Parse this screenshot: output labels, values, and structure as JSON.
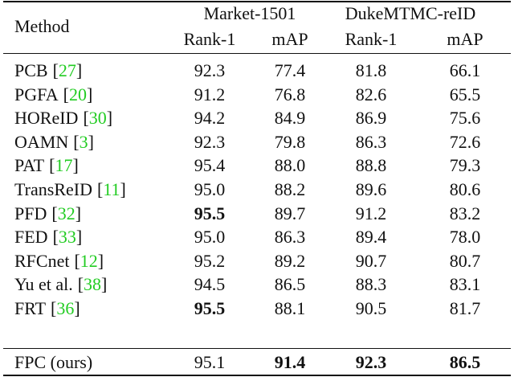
{
  "table": {
    "header": {
      "method": "Method",
      "groups": [
        "Market-1501",
        "DukeMTMC-reID"
      ],
      "metrics": [
        "Rank-1",
        "mAP",
        "Rank-1",
        "mAP"
      ]
    },
    "rows": [
      {
        "method": "PCB",
        "ref": "[27]",
        "values": [
          "92.3",
          "77.4",
          "81.8",
          "66.1"
        ],
        "bold": []
      },
      {
        "method": "PGFA",
        "ref": "[20]",
        "values": [
          "91.2",
          "76.8",
          "82.6",
          "65.5"
        ],
        "bold": []
      },
      {
        "method": "HOReID",
        "ref": "[30]",
        "values": [
          "94.2",
          "84.9",
          "86.9",
          "75.6"
        ],
        "bold": []
      },
      {
        "method": "OAMN",
        "ref": "[3]",
        "values": [
          "92.3",
          "79.8",
          "86.3",
          "72.6"
        ],
        "bold": []
      },
      {
        "method": "PAT",
        "ref": "[17]",
        "values": [
          "95.4",
          "88.0",
          "88.8",
          "79.3"
        ],
        "bold": []
      },
      {
        "method": "TransReID",
        "ref": "[11]",
        "values": [
          "95.0",
          "88.2",
          "89.6",
          "80.6"
        ],
        "bold": []
      },
      {
        "method": "PFD",
        "ref": "[32]",
        "values": [
          "95.5",
          "89.7",
          "91.2",
          "83.2"
        ],
        "bold": [
          0
        ]
      },
      {
        "method": "FED",
        "ref": "[33]",
        "values": [
          "95.0",
          "86.3",
          "89.4",
          "78.0"
        ],
        "bold": []
      },
      {
        "method": "RFCnet",
        "ref": "[12]",
        "values": [
          "95.2",
          "89.2",
          "90.7",
          "80.7"
        ],
        "bold": []
      },
      {
        "method": "Yu et al.",
        "ref": "[38]",
        "values": [
          "94.5",
          "86.5",
          "88.3",
          "83.1"
        ],
        "bold": []
      },
      {
        "method": "FRT",
        "ref": "[36]",
        "values": [
          "95.5",
          "88.1",
          "90.5",
          "81.7"
        ],
        "bold": [
          0
        ]
      },
      {
        "method": "FPC (ours)",
        "values": [
          "95.1",
          "91.4",
          "92.3",
          "86.5"
        ],
        "bold": [
          1,
          2,
          3
        ]
      }
    ]
  }
}
